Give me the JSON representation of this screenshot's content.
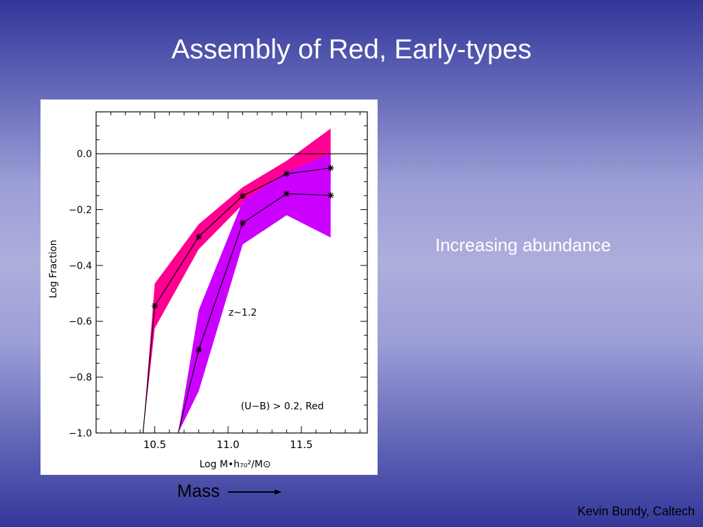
{
  "slide": {
    "title": "Assembly of Red, Early-types",
    "annotation": "Increasing abundance",
    "mass_label": "Mass",
    "credit": "Kevin Bundy, Caltech"
  },
  "colors": {
    "high_z_band": "#ff0090",
    "low_z_band": "#cc00ff",
    "line": "#000000"
  },
  "chart_data": {
    "type": "line",
    "xlabel": "Log M•h₇₀²/M⊙",
    "ylabel": "Log Fraction",
    "xlim": [
      10.1,
      11.95
    ],
    "ylim": [
      -1.0,
      0.15
    ],
    "xticks": [
      10.5,
      11.0,
      11.5
    ],
    "xtick_labels": [
      "10.5",
      "11.0",
      "11.5"
    ],
    "yticks": [
      0.0,
      -0.2,
      -0.4,
      -0.6,
      -0.8,
      -1.0
    ],
    "ytick_labels": [
      "0.0",
      "−0.2",
      "−0.4",
      "−0.6",
      "−0.8",
      "−1.0"
    ],
    "reference_line_y": 0.0,
    "annotations": [
      "z~1.2",
      "(U−B) > 0.2, Red"
    ],
    "series": [
      {
        "x": [
          10.42,
          10.5,
          10.8,
          11.1,
          11.4,
          11.7
        ],
        "y": [
          -1.0,
          -0.545,
          -0.297,
          -0.151,
          -0.072,
          -0.051
        ],
        "upper": [
          -1.0,
          -0.465,
          -0.252,
          -0.12,
          -0.025,
          0.09
        ],
        "lower": [
          -1.0,
          -0.625,
          -0.342,
          -0.182,
          -0.12,
          -0.125
        ],
        "markers": [
          false,
          true,
          true,
          true,
          true,
          true
        ],
        "band_color": "#ff0090"
      },
      {
        "x": [
          10.66,
          10.8,
          11.1,
          11.4,
          11.7
        ],
        "y": [
          -1.0,
          -0.702,
          -0.248,
          -0.143,
          -0.149
        ],
        "upper": [
          -1.0,
          -0.56,
          -0.17,
          -0.065,
          0.0
        ],
        "lower": [
          -1.0,
          -0.85,
          -0.325,
          -0.22,
          -0.3
        ],
        "markers": [
          false,
          true,
          true,
          true,
          true
        ],
        "band_color": "#cc00ff"
      }
    ]
  }
}
